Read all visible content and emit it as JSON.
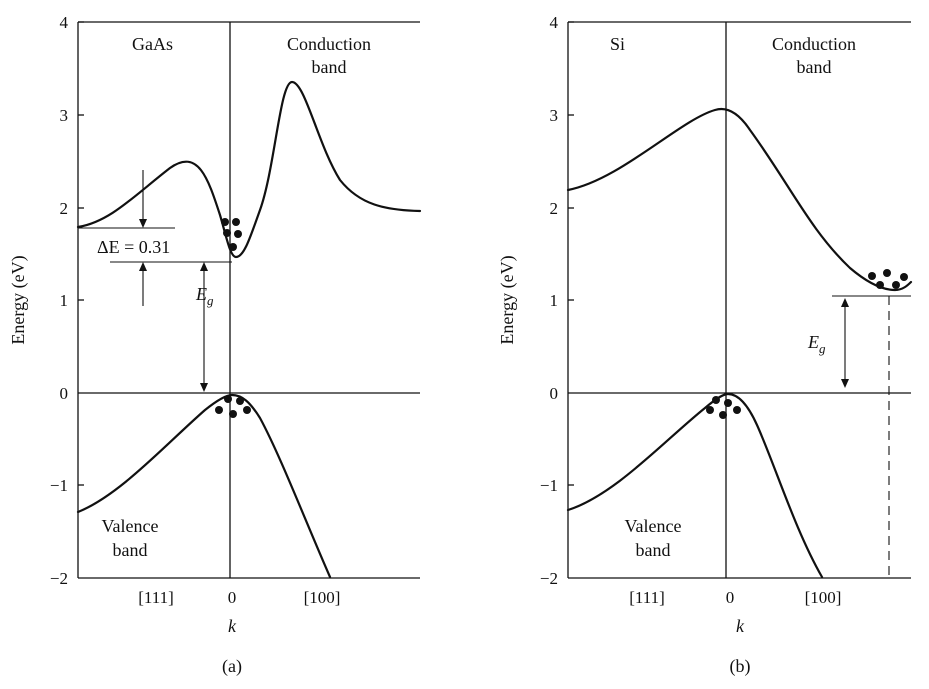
{
  "panel_a": {
    "material": "GaAs",
    "conduction": [
      "Conduction",
      "band"
    ],
    "valence": [
      "Valence",
      "band"
    ],
    "delta_e": "ΔE = 0.31",
    "eg_main": "E",
    "eg_sub": "g",
    "caption": "(a)"
  },
  "panel_b": {
    "material": "Si",
    "conduction": [
      "Conduction",
      "band"
    ],
    "valence": [
      "Valence",
      "band"
    ],
    "eg_main": "E",
    "eg_sub": "g",
    "caption": "(b)"
  },
  "axes": {
    "ylabel": "Energy (eV)",
    "xlabel": "k",
    "yticks": [
      "4",
      "3",
      "2",
      "1",
      "0",
      "−1",
      "−2"
    ],
    "xticks": [
      "[111]",
      "0",
      "[100]"
    ]
  }
}
